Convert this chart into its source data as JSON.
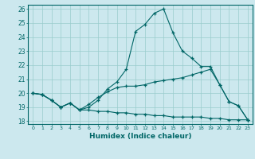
{
  "xlabel": "Humidex (Indice chaleur)",
  "bg_color": "#cce8ee",
  "grid_color": "#99cccc",
  "line_color": "#006666",
  "x_ticks": [
    0,
    1,
    2,
    3,
    4,
    5,
    6,
    7,
    8,
    9,
    10,
    11,
    12,
    13,
    14,
    15,
    16,
    17,
    18,
    19,
    20,
    21,
    22,
    23
  ],
  "ylim": [
    17.8,
    26.3
  ],
  "xlim": [
    -0.5,
    23.5
  ],
  "yticks": [
    18,
    19,
    20,
    21,
    22,
    23,
    24,
    25,
    26
  ],
  "line1": [
    20.0,
    19.9,
    19.5,
    19.0,
    19.3,
    18.8,
    19.0,
    19.5,
    20.3,
    20.8,
    21.7,
    24.4,
    24.9,
    25.7,
    26.0,
    24.3,
    23.0,
    22.5,
    21.9,
    21.9,
    20.6,
    19.4,
    19.1,
    18.1
  ],
  "line2": [
    20.0,
    19.9,
    19.5,
    19.0,
    19.3,
    18.8,
    19.2,
    19.7,
    20.1,
    20.4,
    20.5,
    20.5,
    20.6,
    20.8,
    20.9,
    21.0,
    21.1,
    21.3,
    21.5,
    21.7,
    20.6,
    19.4,
    19.1,
    18.1
  ],
  "line3": [
    20.0,
    19.9,
    19.5,
    19.0,
    19.3,
    18.8,
    18.8,
    18.7,
    18.7,
    18.6,
    18.6,
    18.5,
    18.5,
    18.4,
    18.4,
    18.3,
    18.3,
    18.3,
    18.3,
    18.2,
    18.2,
    18.1,
    18.1,
    18.1
  ]
}
